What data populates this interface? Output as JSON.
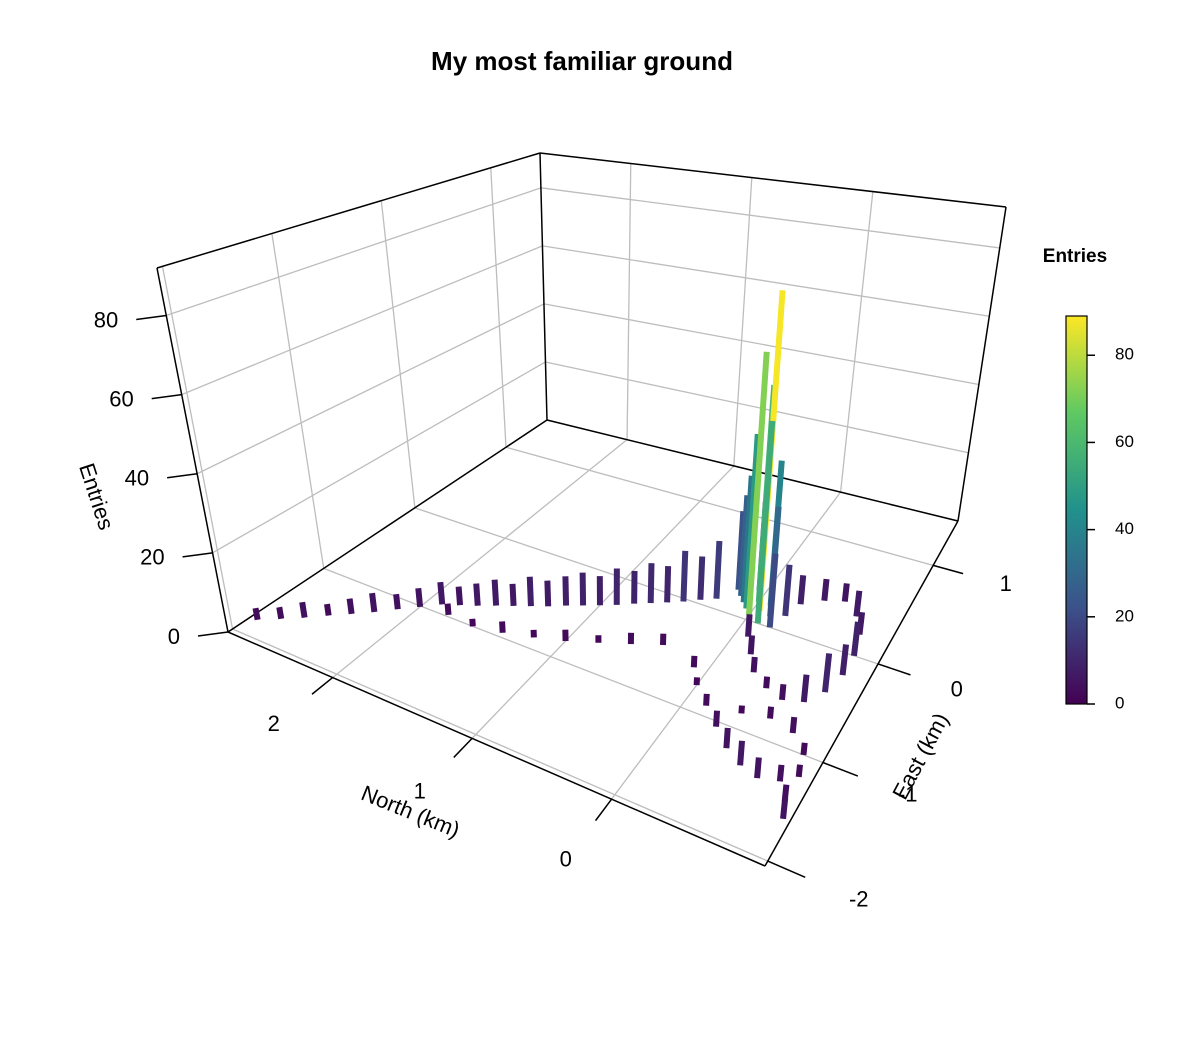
{
  "chart_data": {
    "type": "bar3d",
    "title": "My most familiar ground",
    "xlabel": "North (km)",
    "ylabel": "East (km)",
    "zlabel": "Entries",
    "xlim": [
      -1.1,
      2.75
    ],
    "ylim": [
      -2.05,
      1.45
    ],
    "zlim": [
      0,
      92
    ],
    "xticks": [
      0,
      1,
      2
    ],
    "yticks": [
      -2,
      -1,
      0,
      1
    ],
    "zticks": [
      0,
      20,
      40,
      60,
      80
    ],
    "grid": true,
    "colormap": "viridis",
    "colorbar": {
      "title": "Entries",
      "lim": [
        0,
        89
      ],
      "ticks": [
        0,
        20,
        40,
        60,
        80
      ]
    },
    "x": [
      2.7,
      2.6,
      2.5,
      2.4,
      2.3,
      2.2,
      2.1,
      2.0,
      1.9,
      1.8,
      1.7,
      1.6,
      1.5,
      1.4,
      1.3,
      1.2,
      1.1,
      1.0,
      0.9,
      0.8,
      0.7,
      0.6,
      0.5,
      0.4,
      0.3,
      1.8,
      1.6,
      1.4,
      1.2,
      1.0,
      0.8,
      0.6,
      0.4,
      0.2,
      0.15,
      0.1,
      0.05,
      0.05,
      0.0,
      0.0,
      -0.05,
      -0.1,
      -0.1,
      -0.15,
      -0.2,
      -0.25,
      -0.3,
      -0.45,
      -0.6,
      -0.75,
      -0.85,
      -0.9,
      -0.9,
      -0.85,
      -0.75,
      -0.6,
      -0.45,
      -0.3,
      -0.2,
      -0.1,
      0.1,
      0.0,
      -0.15,
      -0.3,
      -0.45,
      -0.6,
      -0.75,
      -0.9,
      -1.0,
      -0.95,
      -0.8,
      -0.6,
      -0.4,
      -1.0,
      -1.05
    ],
    "y": [
      -1.8,
      -1.69,
      -1.58,
      -1.46,
      -1.35,
      -1.24,
      -1.12,
      -1.01,
      -0.9,
      -0.84,
      -0.78,
      -0.71,
      -0.65,
      -0.59,
      -0.53,
      -0.46,
      -0.4,
      -0.34,
      -0.28,
      -0.21,
      -0.15,
      -0.09,
      -0.03,
      0.04,
      0.1,
      -0.98,
      -1.0,
      -0.95,
      -0.88,
      -0.8,
      -0.7,
      -0.6,
      -0.5,
      0.25,
      0.2,
      0.15,
      0.3,
      0.1,
      0.2,
      0.05,
      0.12,
      0.0,
      0.2,
      0.1,
      0.0,
      0.15,
      0.3,
      0.4,
      0.45,
      0.35,
      0.2,
      0.0,
      -0.2,
      -0.4,
      -0.55,
      -0.6,
      -0.55,
      -0.45,
      -0.3,
      -0.15,
      -0.6,
      -0.75,
      -0.9,
      -1.05,
      -1.2,
      -1.3,
      -1.35,
      -1.3,
      -1.2,
      -1.0,
      -0.85,
      -0.8,
      -0.85,
      -1.45,
      -1.6
    ],
    "values": [
      3,
      3,
      4,
      3,
      4,
      5,
      4,
      5,
      6,
      5,
      6,
      7,
      6,
      8,
      7,
      8,
      9,
      8,
      10,
      9,
      11,
      10,
      14,
      12,
      16,
      3,
      2,
      3,
      2,
      3,
      2,
      3,
      3,
      22,
      28,
      35,
      25,
      48,
      60,
      72,
      88,
      55,
      40,
      30,
      20,
      14,
      8,
      6,
      5,
      7,
      6,
      9,
      8,
      10,
      7,
      4,
      3,
      4,
      5,
      6,
      3,
      2,
      3,
      4,
      5,
      6,
      5,
      4,
      3,
      3,
      4,
      3,
      2,
      4,
      5
    ]
  }
}
